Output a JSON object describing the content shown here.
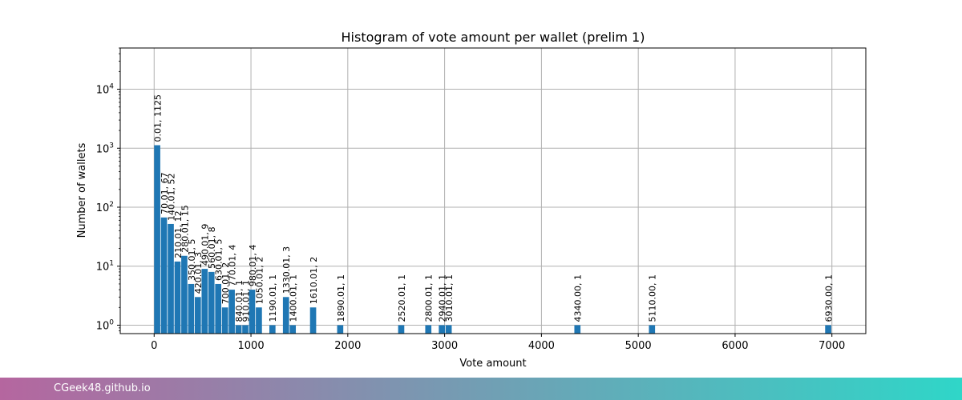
{
  "chart_data": {
    "type": "bar",
    "title": "Histogram of vote amount per wallet (prelim 1)",
    "xlabel": "Vote amount",
    "ylabel": "Number of wallets",
    "y_scale": "log",
    "grid": true,
    "xlim": [
      -350,
      7350
    ],
    "ylim": [
      0.72,
      50000
    ],
    "x_ticks": [
      {
        "value": 0,
        "label": "0"
      },
      {
        "value": 1000,
        "label": "1000"
      },
      {
        "value": 2000,
        "label": "2000"
      },
      {
        "value": 3000,
        "label": "3000"
      },
      {
        "value": 4000,
        "label": "4000"
      },
      {
        "value": 5000,
        "label": "5000"
      },
      {
        "value": 6000,
        "label": "6000"
      },
      {
        "value": 7000,
        "label": "7000"
      }
    ],
    "y_ticks": [
      {
        "value": 1,
        "base": "10",
        "exp": "0"
      },
      {
        "value": 10,
        "base": "10",
        "exp": "1"
      },
      {
        "value": 100,
        "base": "10",
        "exp": "2"
      },
      {
        "value": 1000,
        "base": "10",
        "exp": "3"
      },
      {
        "value": 10000,
        "base": "10",
        "exp": "4"
      }
    ],
    "bin_width": 70,
    "bars": [
      {
        "x": 0.01,
        "count": 1125,
        "label": "0.01, 1125"
      },
      {
        "x": 70.01,
        "count": 67,
        "label": "70.01, 67"
      },
      {
        "x": 140.01,
        "count": 52,
        "label": "140.01, 52"
      },
      {
        "x": 210.01,
        "count": 12,
        "label": "210.01, 12"
      },
      {
        "x": 280.01,
        "count": 15,
        "label": "280.01, 15"
      },
      {
        "x": 350.01,
        "count": 5,
        "label": "350.01, 5"
      },
      {
        "x": 420.01,
        "count": 3,
        "label": "420.01, 3"
      },
      {
        "x": 490.01,
        "count": 9,
        "label": "490.01, 9"
      },
      {
        "x": 560.01,
        "count": 8,
        "label": "560.01, 8"
      },
      {
        "x": 630.01,
        "count": 5,
        "label": "630.01, 5"
      },
      {
        "x": 700.01,
        "count": 2,
        "label": "700.01, 2"
      },
      {
        "x": 770.01,
        "count": 4,
        "label": "770.01, 4"
      },
      {
        "x": 840.01,
        "count": 1,
        "label": "840.01, 1"
      },
      {
        "x": 910.01,
        "count": 1,
        "label": "910.01, 1"
      },
      {
        "x": 980.01,
        "count": 4,
        "label": "980.01, 4"
      },
      {
        "x": 1050.01,
        "count": 2,
        "label": "1050.01, 2"
      },
      {
        "x": 1190.01,
        "count": 1,
        "label": "1190.01, 1"
      },
      {
        "x": 1330.01,
        "count": 3,
        "label": "1330.01, 3"
      },
      {
        "x": 1400.01,
        "count": 1,
        "label": "1400.01, 1"
      },
      {
        "x": 1610.01,
        "count": 2,
        "label": "1610.01, 2"
      },
      {
        "x": 1890.01,
        "count": 1,
        "label": "1890.01, 1"
      },
      {
        "x": 2520.01,
        "count": 1,
        "label": "2520.01, 1"
      },
      {
        "x": 2800.01,
        "count": 1,
        "label": "2800.01, 1"
      },
      {
        "x": 2940.01,
        "count": 1,
        "label": "2940.01, 1"
      },
      {
        "x": 3010.01,
        "count": 1,
        "label": "3010.01, 1"
      },
      {
        "x": 4340.0,
        "count": 1,
        "label": "4340.00, 1"
      },
      {
        "x": 5110.0,
        "count": 1,
        "label": "5110.00, 1"
      },
      {
        "x": 6930.0,
        "count": 1,
        "label": "6930.00, 1"
      }
    ],
    "colors": {
      "bar": "#1f77b4",
      "grid": "#b0b0b0",
      "axis": "#000000"
    }
  },
  "footer": {
    "text": "CGeek48.github.io",
    "gradient_start": "#b5669f",
    "gradient_end": "#2fd6c8"
  }
}
